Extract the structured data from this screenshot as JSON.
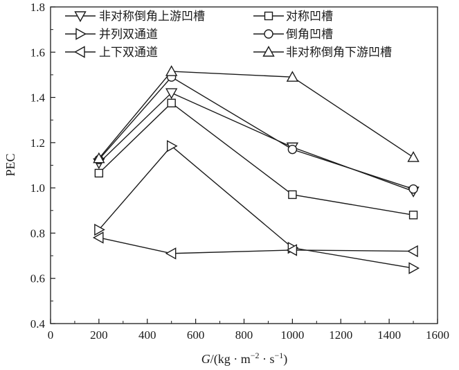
{
  "chart_data": {
    "type": "line",
    "xlabel_italic": "G",
    "xlabel_rest": "/(kg · m",
    "xlabel_sup1": "−2",
    "xlabel_mid": " · s",
    "xlabel_sup2": "−1",
    "xlabel_end": ")",
    "ylabel": "PEC",
    "xlim": [
      0,
      1600
    ],
    "ylim": [
      0.4,
      1.8
    ],
    "xticks": [
      "0",
      "200",
      "400",
      "600",
      "800",
      "1000",
      "1200",
      "1400",
      "1600"
    ],
    "yticks": [
      "0.4",
      "0.6",
      "0.8",
      "1.0",
      "1.2",
      "1.4",
      "1.6",
      "1.8"
    ],
    "x": [
      200,
      500,
      1000,
      1500
    ],
    "series": [
      {
        "name": "非对称倒角上游凹槽",
        "marker": "triangle-down",
        "values": [
          1.11,
          1.42,
          1.18,
          0.985
        ]
      },
      {
        "name": "对称凹槽",
        "marker": "square",
        "values": [
          1.065,
          1.375,
          0.97,
          0.88
        ]
      },
      {
        "name": "并列双通道",
        "marker": "triangle-right",
        "values": [
          0.815,
          1.185,
          0.735,
          0.645
        ]
      },
      {
        "name": "倒角凹槽",
        "marker": "circle",
        "values": [
          1.125,
          1.49,
          1.17,
          0.995
        ]
      },
      {
        "name": "上下双通道",
        "marker": "triangle-left",
        "values": [
          0.78,
          0.71,
          0.725,
          0.72
        ]
      },
      {
        "name": "非对称倒角下游凹槽",
        "marker": "triangle-up",
        "values": [
          1.13,
          1.515,
          1.49,
          1.135
        ]
      }
    ],
    "legend_position": "top",
    "grid": false,
    "line_color": "#1a1a1a"
  }
}
